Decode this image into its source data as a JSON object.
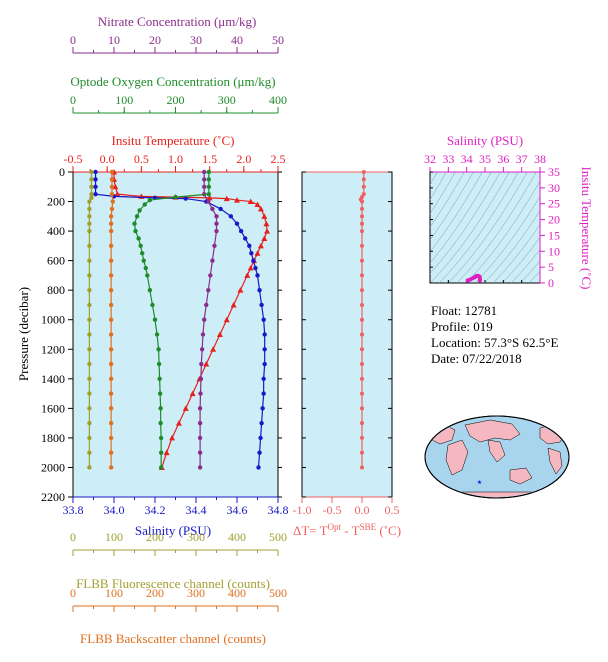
{
  "float_info": {
    "float": "Float:  12781",
    "profile": "Profile:  019",
    "location": "Location:  57.3°S  62.5°E",
    "date": "Date:  07/22/2018"
  },
  "colors": {
    "nitrate": "#8b2d8b",
    "oxygen": "#1e8c2a",
    "temperature": "#e8201c",
    "salinity": "#1818c8",
    "fluorescence": "#a0a030",
    "backscatter": "#e07020",
    "delta_t": "#f06060",
    "ts_axis": "#e020c0",
    "panel_bg": "#cdeef7"
  },
  "chart_data": [
    {
      "type": "line",
      "panel": "main-profile",
      "ylabel": "Pressure (decibar)",
      "ylim": [
        2200,
        0
      ],
      "yticks": [
        "0",
        "200",
        "400",
        "600",
        "800",
        "1000",
        "1200",
        "1400",
        "1600",
        "1800",
        "2000",
        "2200"
      ],
      "axes": {
        "nitrate": {
          "label": "Nitrate Concentration (μm/kg)",
          "range": [
            0,
            50
          ],
          "ticks": [
            "0",
            "10",
            "20",
            "30",
            "40",
            "50"
          ]
        },
        "oxygen": {
          "label": "Optode Oxygen Concentration (μm/kg)",
          "range": [
            0,
            400
          ],
          "ticks": [
            "0",
            "100",
            "200",
            "300",
            "400"
          ]
        },
        "temperature": {
          "label": "Insitu Temperature (˚C)",
          "range": [
            -0.5,
            2.5
          ],
          "ticks": [
            "-0.5",
            "0.0",
            "0.5",
            "1.0",
            "1.5",
            "2.0",
            "2.5"
          ]
        },
        "salinity": {
          "label": "Salinity (PSU)",
          "range": [
            33.8,
            34.8
          ],
          "ticks": [
            "33.8",
            "34.0",
            "34.2",
            "34.4",
            "34.6",
            "34.8"
          ]
        },
        "fluorescence": {
          "label": "FLBB Fluorescence channel (counts)",
          "range": [
            0,
            500
          ],
          "ticks": [
            "0",
            "100",
            "200",
            "300",
            "400",
            "500"
          ]
        },
        "backscatter": {
          "label": "FLBB Backscatter channel (counts)",
          "range": [
            0,
            500
          ],
          "ticks": [
            "0",
            "100",
            "200",
            "300",
            "400",
            "500"
          ]
        }
      },
      "series": [
        {
          "key": "temperature",
          "marker": "triangle",
          "points": [
            [
              0.1,
              0
            ],
            [
              0.1,
              50
            ],
            [
              0.12,
              100
            ],
            [
              0.15,
              150
            ],
            [
              0.5,
              165
            ],
            [
              1.0,
              170
            ],
            [
              1.5,
              175
            ],
            [
              1.75,
              180
            ],
            [
              1.9,
              190
            ],
            [
              2.1,
              200
            ],
            [
              2.2,
              220
            ],
            [
              2.25,
              250
            ],
            [
              2.3,
              300
            ],
            [
              2.33,
              350
            ],
            [
              2.34,
              400
            ],
            [
              2.3,
              450
            ],
            [
              2.25,
              500
            ],
            [
              2.2,
              550
            ],
            [
              2.15,
              600
            ],
            [
              2.1,
              650
            ],
            [
              2.05,
              700
            ],
            [
              1.95,
              800
            ],
            [
              1.85,
              900
            ],
            [
              1.75,
              1000
            ],
            [
              1.65,
              1100
            ],
            [
              1.55,
              1200
            ],
            [
              1.45,
              1300
            ],
            [
              1.35,
              1400
            ],
            [
              1.25,
              1500
            ],
            [
              1.15,
              1600
            ],
            [
              1.05,
              1700
            ],
            [
              0.95,
              1800
            ],
            [
              0.87,
              1900
            ],
            [
              0.8,
              2000
            ]
          ]
        },
        {
          "key": "salinity",
          "marker": "circle",
          "points": [
            [
              33.91,
              0
            ],
            [
              33.91,
              50
            ],
            [
              33.91,
              100
            ],
            [
              33.91,
              150
            ],
            [
              34.0,
              165
            ],
            [
              34.2,
              175
            ],
            [
              34.35,
              180
            ],
            [
              34.45,
              200
            ],
            [
              34.52,
              250
            ],
            [
              34.57,
              300
            ],
            [
              34.6,
              350
            ],
            [
              34.62,
              400
            ],
            [
              34.64,
              450
            ],
            [
              34.66,
              500
            ],
            [
              34.67,
              550
            ],
            [
              34.68,
              600
            ],
            [
              34.69,
              650
            ],
            [
              34.7,
              700
            ],
            [
              34.71,
              800
            ],
            [
              34.72,
              900
            ],
            [
              34.73,
              1000
            ],
            [
              34.735,
              1100
            ],
            [
              34.735,
              1200
            ],
            [
              34.735,
              1300
            ],
            [
              34.73,
              1400
            ],
            [
              34.73,
              1500
            ],
            [
              34.725,
              1600
            ],
            [
              34.72,
              1700
            ],
            [
              34.715,
              1800
            ],
            [
              34.71,
              1900
            ],
            [
              34.705,
              2000
            ]
          ]
        },
        {
          "key": "nitrate",
          "marker": "circle",
          "points": [
            [
              32,
              0
            ],
            [
              32,
              50
            ],
            [
              32,
              100
            ],
            [
              32,
              150
            ],
            [
              33,
              200
            ],
            [
              34,
              250
            ],
            [
              35,
              300
            ],
            [
              35,
              350
            ],
            [
              35,
              400
            ],
            [
              34.5,
              500
            ],
            [
              34,
              600
            ],
            [
              33.5,
              700
            ],
            [
              33,
              800
            ],
            [
              32.5,
              900
            ],
            [
              32,
              1000
            ],
            [
              31.7,
              1100
            ],
            [
              31.5,
              1200
            ],
            [
              31.3,
              1300
            ],
            [
              31.2,
              1400
            ],
            [
              31.1,
              1500
            ],
            [
              31,
              1600
            ],
            [
              31,
              1700
            ],
            [
              31,
              1800
            ],
            [
              31,
              1900
            ],
            [
              31,
              2000
            ]
          ]
        },
        {
          "key": "oxygen",
          "marker": "circle",
          "points": [
            [
              265,
              0
            ],
            [
              265,
              50
            ],
            [
              265,
              100
            ],
            [
              265,
              150
            ],
            [
              200,
              170
            ],
            [
              150,
              190
            ],
            [
              140,
              220
            ],
            [
              130,
              260
            ],
            [
              125,
              300
            ],
            [
              120,
              350
            ],
            [
              122,
              400
            ],
            [
              128,
              450
            ],
            [
              132,
              500
            ],
            [
              135,
              550
            ],
            [
              138,
              600
            ],
            [
              142,
              650
            ],
            [
              145,
              700
            ],
            [
              150,
              800
            ],
            [
              155,
              900
            ],
            [
              160,
              1000
            ],
            [
              164,
              1100
            ],
            [
              167,
              1200
            ],
            [
              168,
              1300
            ],
            [
              169,
              1400
            ],
            [
              170,
              1500
            ],
            [
              171,
              1600
            ],
            [
              171,
              1700
            ],
            [
              172,
              1800
            ],
            [
              172,
              1900
            ],
            [
              172,
              2000
            ]
          ]
        },
        {
          "key": "fluorescence",
          "marker": "circle",
          "points": [
            [
              45,
              0
            ],
            [
              45,
              50
            ],
            [
              45,
              100
            ],
            [
              45,
              150
            ],
            [
              45,
              175
            ],
            [
              40,
              200
            ],
            [
              40,
              250
            ],
            [
              40,
              300
            ],
            [
              40,
              350
            ],
            [
              40,
              400
            ],
            [
              40,
              500
            ],
            [
              40,
              600
            ],
            [
              40,
              700
            ],
            [
              40,
              800
            ],
            [
              40,
              900
            ],
            [
              40,
              1000
            ],
            [
              40,
              1100
            ],
            [
              40,
              1200
            ],
            [
              40,
              1300
            ],
            [
              40,
              1400
            ],
            [
              40,
              1500
            ],
            [
              40,
              1600
            ],
            [
              40,
              1700
            ],
            [
              40,
              1800
            ],
            [
              40,
              1900
            ],
            [
              40,
              2000
            ]
          ]
        },
        {
          "key": "backscatter",
          "marker": "circle",
          "points": [
            [
              95,
              0
            ],
            [
              95,
              50
            ],
            [
              95,
              100
            ],
            [
              95,
              150
            ],
            [
              97,
              200
            ],
            [
              95,
              250
            ],
            [
              93,
              300
            ],
            [
              93,
              350
            ],
            [
              93,
              400
            ],
            [
              93,
              500
            ],
            [
              93,
              600
            ],
            [
              93,
              700
            ],
            [
              93,
              800
            ],
            [
              93,
              900
            ],
            [
              93,
              1000
            ],
            [
              93,
              1100
            ],
            [
              93,
              1200
            ],
            [
              93,
              1300
            ],
            [
              93,
              1400
            ],
            [
              93,
              1500
            ],
            [
              93,
              1600
            ],
            [
              93,
              1700
            ],
            [
              93,
              1800
            ],
            [
              93,
              1900
            ],
            [
              93,
              2000
            ]
          ]
        }
      ]
    },
    {
      "type": "scatter",
      "panel": "delta-t",
      "xlabel": "ΔT= T",
      "xlabel_sup1": "Opt",
      "xlabel_mid": " - T",
      "xlabel_sup2": "SBE",
      "xlabel_end": " (˚C)",
      "xlim": [
        -1.0,
        0.5
      ],
      "xticks": [
        "-1.0",
        "-0.5",
        "0.0",
        "0.5"
      ],
      "ylim": [
        2200,
        0
      ],
      "points": [
        [
          0.03,
          0
        ],
        [
          0.03,
          50
        ],
        [
          0.03,
          100
        ],
        [
          0.03,
          150
        ],
        [
          0.0,
          170
        ],
        [
          -0.02,
          185
        ],
        [
          0.0,
          200
        ],
        [
          0.0,
          250
        ],
        [
          0.0,
          300
        ],
        [
          0.0,
          350
        ],
        [
          0.0,
          400
        ],
        [
          0.0,
          500
        ],
        [
          0.0,
          600
        ],
        [
          0.0,
          700
        ],
        [
          0.0,
          800
        ],
        [
          0.0,
          900
        ],
        [
          0.0,
          1000
        ],
        [
          0.0,
          1100
        ],
        [
          0.0,
          1200
        ],
        [
          0.0,
          1300
        ],
        [
          0.0,
          1400
        ],
        [
          0.0,
          1500
        ],
        [
          0.0,
          1600
        ],
        [
          0.0,
          1700
        ],
        [
          0.0,
          1800
        ],
        [
          0.0,
          1900
        ],
        [
          0.0,
          2000
        ]
      ]
    },
    {
      "type": "scatter",
      "panel": "ts-diagram",
      "xlabel": "Salinity (PSU)",
      "ylabel": "Insitu Temperature (˚C)",
      "xlim": [
        32,
        38
      ],
      "ylim": [
        0,
        35
      ],
      "xticks": [
        "32",
        "33",
        "34",
        "35",
        "36",
        "37",
        "38"
      ],
      "yticks": [
        "0",
        "5",
        "10",
        "15",
        "20",
        "25",
        "30",
        "35"
      ],
      "points": [
        [
          34.05,
          0.8
        ],
        [
          34.1,
          0.9
        ],
        [
          34.2,
          1.1
        ],
        [
          34.3,
          1.4
        ],
        [
          34.4,
          1.7
        ],
        [
          34.45,
          1.9
        ],
        [
          34.5,
          2.1
        ],
        [
          34.55,
          2.25
        ],
        [
          34.6,
          2.3
        ],
        [
          34.65,
          2.2
        ],
        [
          34.7,
          2.0
        ],
        [
          34.72,
          1.6
        ],
        [
          34.73,
          1.2
        ],
        [
          34.72,
          0.8
        ]
      ]
    }
  ]
}
